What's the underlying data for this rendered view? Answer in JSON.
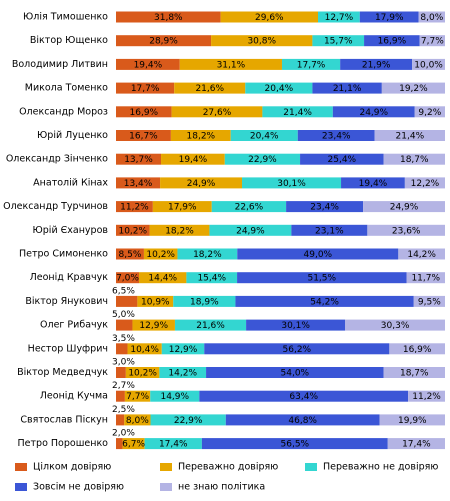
{
  "chart_data": {
    "type": "bar",
    "orientation": "horizontal",
    "stacked": true,
    "categories": [
      "Юлія Тимошенко",
      "Віктор Ющенко",
      "Володимир Литвин",
      "Микола Томенко",
      "Олександр Мороз",
      "Юрій Луценко",
      "Олександр Зінченко",
      "Анатолій Кінах",
      "Олександр Турчинов",
      "Юрій Єхануров",
      "Петро Симоненко",
      "Леонід Кравчук",
      "Віктор Янукович",
      "Олег Рибачук",
      "Нестор Шуфрич",
      "Віктор Медведчук",
      "Леонід Кучма",
      "Святослав Піскун",
      "Петро Порошенко"
    ],
    "series": [
      {
        "name": "Цілком довіряю",
        "color": "#d95a1b",
        "values": [
          31.8,
          28.9,
          19.4,
          17.7,
          16.9,
          16.7,
          13.7,
          13.4,
          11.2,
          10.2,
          8.5,
          7.0,
          6.5,
          5.0,
          3.5,
          3.0,
          2.7,
          2.5,
          2.0
        ],
        "value_labels": [
          "31,8%",
          "28,9%",
          "19,4%",
          "17,7%",
          "16,9%",
          "16,7%",
          "13,7%",
          "13,4%",
          "11,2%",
          "10,2%",
          "8,5%",
          "7,0%",
          "6,5%",
          "5,0%",
          "3,5%",
          "3,0%",
          "2,7%",
          "2,5%",
          "2,0%"
        ]
      },
      {
        "name": "Переважно довіряю",
        "color": "#e6a700",
        "values": [
          29.6,
          30.8,
          31.1,
          21.6,
          27.6,
          18.2,
          19.4,
          24.9,
          17.9,
          18.2,
          10.2,
          14.4,
          10.9,
          12.9,
          10.4,
          10.2,
          7.7,
          8.0,
          6.7
        ],
        "value_labels": [
          "29,6%",
          "30,8%",
          "31,1%",
          "21,6%",
          "27,6%",
          "18,2%",
          "19,4%",
          "24,9%",
          "17,9%",
          "18,2%",
          "10,2%",
          "14,4%",
          "10,9%",
          "12,9%",
          "10,4%",
          "10,2%",
          "7,7%",
          "8,0%",
          "6,7%"
        ]
      },
      {
        "name": "Переважно не довіряю",
        "color": "#33d6d1",
        "values": [
          12.7,
          15.7,
          17.7,
          20.4,
          21.4,
          20.4,
          22.9,
          30.1,
          22.6,
          24.9,
          18.2,
          15.4,
          18.9,
          21.6,
          12.9,
          14.2,
          14.9,
          22.9,
          17.4
        ],
        "value_labels": [
          "12,7%",
          "15,7%",
          "17,7%",
          "20,4%",
          "21,4%",
          "20,4%",
          "22,9%",
          "30,1%",
          "22,6%",
          "24,9%",
          "18,2%",
          "15,4%",
          "18,9%",
          "21,6%",
          "12,9%",
          "14,2%",
          "14,9%",
          "22,9%",
          "17,4%"
        ]
      },
      {
        "name": "Зовсім не довіряю",
        "color": "#3b56d6",
        "values": [
          17.9,
          16.9,
          21.9,
          21.1,
          24.9,
          23.4,
          25.4,
          19.4,
          23.4,
          23.1,
          49.0,
          51.5,
          54.2,
          30.1,
          56.2,
          54.0,
          63.4,
          46.8,
          56.5
        ],
        "value_labels": [
          "17,9%",
          "16,9%",
          "21,9%",
          "21,1%",
          "24,9%",
          "23,4%",
          "25,4%",
          "19,4%",
          "23,4%",
          "23,1%",
          "49,0%",
          "51,5%",
          "54,2%",
          "30,1%",
          "56,2%",
          "54,0%",
          "63,4%",
          "46,8%",
          "56,5%"
        ]
      },
      {
        "name": "не знаю політика",
        "color": "#b4b4e4",
        "values": [
          8.0,
          7.7,
          10.0,
          19.2,
          9.2,
          21.4,
          18.7,
          12.2,
          24.9,
          23.6,
          14.2,
          11.7,
          9.5,
          30.3,
          16.9,
          18.7,
          11.2,
          19.9,
          17.4
        ],
        "value_labels": [
          "8,0%",
          "7,7%",
          "10,0%",
          "19,2%",
          "9,2%",
          "21,4%",
          "18,7%",
          "12,2%",
          "24,9%",
          "23,6%",
          "14,2%",
          "11,7%",
          "9,5%",
          "30,3%",
          "16,9%",
          "18,7%",
          "11,2%",
          "19,9%",
          "17,4%"
        ]
      }
    ]
  }
}
